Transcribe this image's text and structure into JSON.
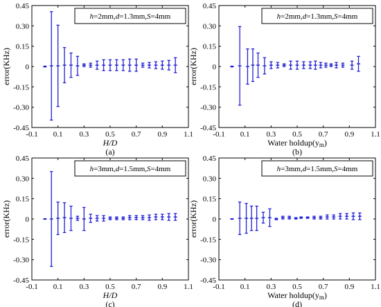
{
  "chart_data": [
    {
      "id": "a",
      "type": "errorbar",
      "subfigure_label": "(a)",
      "xlabel": "H/D",
      "ylabel": "error(KHz)",
      "legend_parts": [
        {
          "t": "h",
          "i": true
        },
        {
          "t": "=2mm,",
          "i": false
        },
        {
          "t": "d",
          "i": true
        },
        {
          "t": "=1.3mm,",
          "i": false
        },
        {
          "t": "S",
          "i": true
        },
        {
          "t": "=4mm",
          "i": false
        }
      ],
      "xlim": [
        -0.1,
        1.1
      ],
      "ylim": [
        -0.45,
        0.45
      ],
      "xticks": [
        "-0.1",
        "0.1",
        "0.3",
        "0.5",
        "0.7",
        "0.9",
        "1.1"
      ],
      "yticks": [
        "0.45",
        "0.30",
        "0.15",
        "0",
        "-0.15",
        "-0.30",
        "-0.45"
      ],
      "x": [
        0,
        0.05,
        0.1,
        0.15,
        0.2,
        0.25,
        0.3,
        0.35,
        0.4,
        0.45,
        0.5,
        0.55,
        0.6,
        0.65,
        0.7,
        0.75,
        0.8,
        0.85,
        0.9,
        0.95,
        1.0
      ],
      "y": [
        0,
        0.005,
        0.005,
        0.01,
        0.01,
        0.005,
        0.01,
        0.01,
        0.01,
        0.01,
        0.01,
        0.01,
        0.01,
        0.01,
        0.01,
        0.01,
        0.01,
        0.01,
        0.01,
        0.01,
        0.01
      ],
      "err": [
        0.003,
        0.4,
        0.3,
        0.13,
        0.09,
        0.07,
        0.01,
        0.015,
        0.03,
        0.04,
        0.04,
        0.04,
        0.04,
        0.045,
        0.045,
        0.015,
        0.02,
        0.025,
        0.03,
        0.035,
        0.055
      ]
    },
    {
      "id": "b",
      "type": "errorbar",
      "subfigure_label": "(b)",
      "xlabel": "Water holdup(y",
      "xlabel_sub": "m",
      "xlabel_end": ")",
      "ylabel": "error(KHz)",
      "legend_parts": [
        {
          "t": "h",
          "i": true
        },
        {
          "t": "=2mm,",
          "i": false
        },
        {
          "t": "d",
          "i": true
        },
        {
          "t": "=1.3mm,",
          "i": false
        },
        {
          "t": "S",
          "i": true
        },
        {
          "t": "=4mm",
          "i": false
        }
      ],
      "xlim": [
        -0.1,
        1.1
      ],
      "ylim": [
        -0.45,
        0.45
      ],
      "xticks": [
        "-0.1",
        "0.1",
        "0.3",
        "0.5",
        "0.7",
        "0.9",
        "1.1"
      ],
      "yticks": [
        "0.45",
        "0.30",
        "0.15",
        "0",
        "-0.15",
        "-0.30",
        "-0.45"
      ],
      "x": [
        0,
        0.06,
        0.12,
        0.16,
        0.2,
        0.25,
        0.3,
        0.35,
        0.4,
        0.45,
        0.5,
        0.55,
        0.6,
        0.64,
        0.68,
        0.72,
        0.76,
        0.8,
        0.85,
        0.92,
        0.97
      ],
      "y": [
        0,
        0.005,
        0.0,
        0.01,
        0.01,
        0.005,
        0.01,
        0.01,
        0.01,
        0.01,
        0.01,
        0.01,
        0.01,
        0.01,
        0.01,
        0.01,
        0.01,
        0.01,
        0.01,
        0.01,
        0.02
      ],
      "err": [
        0.003,
        0.29,
        0.13,
        0.12,
        0.09,
        0.06,
        0.025,
        0.02,
        0.01,
        0.03,
        0.03,
        0.025,
        0.025,
        0.03,
        0.02,
        0.015,
        0.01,
        0.02,
        0.015,
        0.03,
        0.055
      ]
    },
    {
      "id": "c",
      "type": "errorbar",
      "subfigure_label": "(c)",
      "xlabel": "H/D",
      "ylabel": "error(KHz)",
      "legend_parts": [
        {
          "t": "h",
          "i": true
        },
        {
          "t": "=3mm,",
          "i": false
        },
        {
          "t": "d",
          "i": true
        },
        {
          "t": "=1.5mm,",
          "i": false
        },
        {
          "t": "S",
          "i": true
        },
        {
          "t": "=4mm",
          "i": false
        }
      ],
      "xlim": [
        -0.1,
        1.1
      ],
      "ylim": [
        -0.45,
        0.45
      ],
      "xticks": [
        "-0.1",
        "0.1",
        "0.3",
        "0.5",
        "0.7",
        "0.9",
        "1.1"
      ],
      "yticks": [
        "0.45",
        "0.30",
        "0.15",
        "0",
        "-0.15",
        "-0.30",
        "-0.45"
      ],
      "x": [
        0,
        0.05,
        0.1,
        0.15,
        0.2,
        0.25,
        0.3,
        0.35,
        0.4,
        0.45,
        0.5,
        0.55,
        0.6,
        0.65,
        0.7,
        0.75,
        0.8,
        0.85,
        0.9,
        0.95,
        1.0
      ],
      "y": [
        0,
        0.0,
        0.005,
        0.01,
        0.005,
        0.005,
        0.0,
        0.005,
        0.005,
        0.005,
        0.005,
        0.005,
        0.005,
        0.01,
        0.01,
        0.01,
        0.01,
        0.015,
        0.015,
        0.015,
        0.015
      ],
      "err": [
        0.002,
        0.35,
        0.12,
        0.11,
        0.09,
        0.015,
        0.085,
        0.03,
        0.02,
        0.02,
        0.01,
        0.01,
        0.01,
        0.015,
        0.015,
        0.015,
        0.02,
        0.02,
        0.02,
        0.025,
        0.025
      ]
    },
    {
      "id": "d",
      "type": "errorbar",
      "subfigure_label": "(d)",
      "xlabel": "Water holdup(y",
      "xlabel_sub": "m",
      "xlabel_end": ")",
      "ylabel": "error(KHz)",
      "legend_parts": [
        {
          "t": "h",
          "i": true
        },
        {
          "t": "=3mm,",
          "i": false
        },
        {
          "t": "d",
          "i": true
        },
        {
          "t": "=1.5mm,",
          "i": false
        },
        {
          "t": "S",
          "i": true
        },
        {
          "t": "=4mm",
          "i": false
        }
      ],
      "xlim": [
        -0.1,
        1.1
      ],
      "ylim": [
        -0.45,
        0.45
      ],
      "xticks": [
        "-0.1",
        "0.1",
        "0.3",
        "0.5",
        "0.7",
        "0.9",
        "1.1"
      ],
      "yticks": [
        "0.45",
        "0.30",
        "0.15",
        "0",
        "-0.15",
        "-0.30",
        "-0.45"
      ],
      "x": [
        0,
        0.06,
        0.11,
        0.15,
        0.19,
        0.24,
        0.29,
        0.34,
        0.39,
        0.44,
        0.49,
        0.53,
        0.58,
        0.63,
        0.68,
        0.73,
        0.78,
        0.83,
        0.88,
        0.93,
        0.98
      ],
      "y": [
        0,
        0.005,
        0.005,
        0.005,
        0.005,
        0.01,
        0.01,
        0.0,
        0.01,
        0.01,
        0.005,
        0.01,
        0.01,
        0.01,
        0.01,
        0.015,
        0.015,
        0.02,
        0.02,
        0.02,
        0.02
      ],
      "err": [
        0.002,
        0.12,
        0.11,
        0.09,
        0.09,
        0.04,
        0.065,
        0.005,
        0.01,
        0.01,
        0.005,
        0.005,
        0.005,
        0.01,
        0.01,
        0.015,
        0.015,
        0.02,
        0.02,
        0.025,
        0.025
      ]
    }
  ],
  "style": {
    "series_color": "#1f1fd6",
    "axis_color": "#000000"
  }
}
